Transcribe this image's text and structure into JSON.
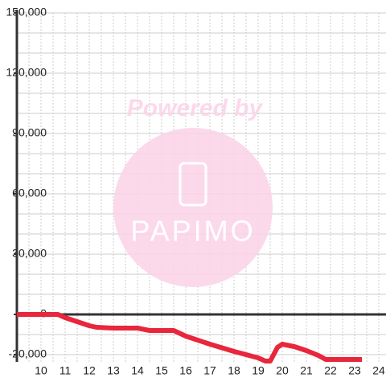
{
  "chart_data": {
    "type": "line",
    "watermark": {
      "title": "Powered by",
      "brand": "PAPIMO"
    },
    "x": [
      9,
      10.7,
      11,
      11.5,
      12,
      12.3,
      13,
      14,
      14.5,
      15.5,
      16,
      17,
      18,
      19,
      19.3,
      19.5,
      19.8,
      20,
      20.5,
      21,
      21.5,
      21.8,
      23.3
    ],
    "series": [
      {
        "color": "#e8263c",
        "values": [
          0,
          0,
          -1600,
          -3600,
          -5600,
          -6400,
          -6800,
          -6800,
          -8000,
          -8000,
          -10800,
          -14800,
          -18400,
          -21600,
          -23200,
          -23200,
          -16400,
          -14800,
          -16000,
          -18000,
          -20400,
          -22400,
          -22400
        ]
      }
    ],
    "xlim": [
      9,
      24.3
    ],
    "xticks": [
      10,
      11,
      12,
      13,
      14,
      15,
      16,
      17,
      18,
      19,
      20,
      21,
      22,
      23,
      24
    ],
    "xminorticks": [
      9.5,
      10.5,
      11.5,
      12.5,
      13.5,
      14.5,
      15.5,
      16.5,
      17.5,
      18.5,
      19.5,
      20.5,
      21.5,
      22.5,
      23.5
    ],
    "ylim": [
      -23600,
      150000
    ],
    "yticks": [
      {
        "value": -20000,
        "label": "-20,000"
      },
      0,
      {
        "value": 30000,
        "label": "30,000"
      },
      {
        "value": 60000,
        "label": "60,000"
      },
      {
        "value": 90000,
        "label": "90,000"
      },
      {
        "value": 120000,
        "label": "120,000"
      },
      {
        "value": 150000,
        "label": "150,000"
      }
    ],
    "yminorticks": [
      -10000,
      10000,
      20000,
      40000,
      50000,
      70000,
      80000,
      100000,
      110000,
      130000,
      140000
    ],
    "grid": true
  }
}
